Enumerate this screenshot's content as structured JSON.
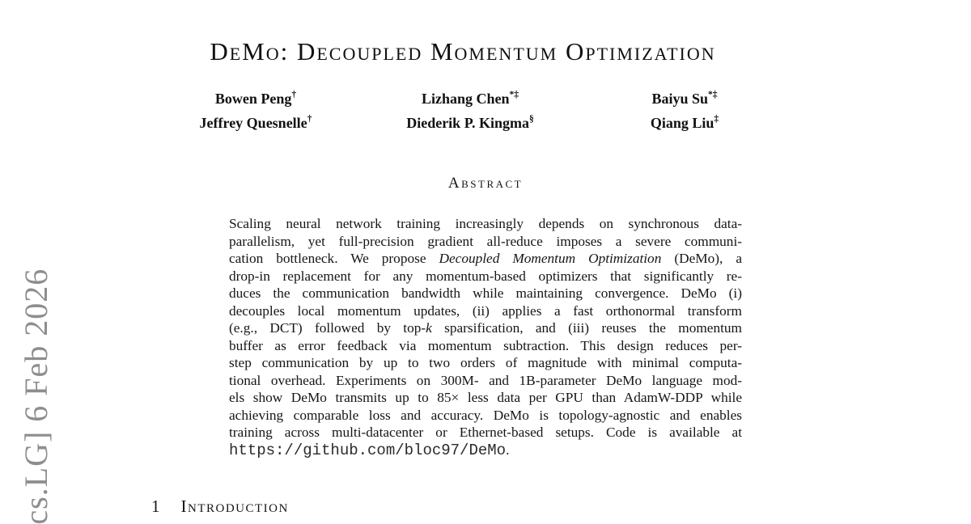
{
  "arxiv_stamp": {
    "text": "[cs.LG] 6 Feb 2026",
    "color": "#8e8e8e"
  },
  "title": "DeMo: Decoupled Momentum Optimization",
  "authors": [
    {
      "name": "Bowen Peng",
      "sup": "†"
    },
    {
      "name": "Lizhang Chen",
      "sup": "*‡"
    },
    {
      "name": "Baiyu Su",
      "sup": "*‡"
    },
    {
      "name": "Jeffrey Quesnelle",
      "sup": "†"
    },
    {
      "name": "Diederik P. Kingma",
      "sup": "§"
    },
    {
      "name": "Qiang Liu",
      "sup": "‡"
    }
  ],
  "abstract": {
    "heading": "Abstract",
    "lines": [
      [
        {
          "text": "Scaling neural network training increasingly depends on synchronous data-"
        }
      ],
      [
        {
          "text": "parallelism, yet full-precision gradient all-reduce imposes a severe communi-"
        }
      ],
      [
        {
          "text": "cation bottleneck.  We propose "
        },
        {
          "text": "Decoupled Momentum Optimization",
          "style": "italic"
        },
        {
          "text": " (DeMo), a"
        }
      ],
      [
        {
          "text": "drop-in replacement for any momentum-based optimizers that significantly re-"
        }
      ],
      [
        {
          "text": "duces the communication bandwidth while maintaining convergence.  DeMo (i)"
        }
      ],
      [
        {
          "text": "decouples local momentum updates, (ii) applies a fast orthonormal transform"
        }
      ],
      [
        {
          "text": "(e.g., DCT) followed by top-"
        },
        {
          "text": "k",
          "style": "italic"
        },
        {
          "text": " sparsification, and (iii) reuses the momentum"
        }
      ],
      [
        {
          "text": "buffer as error feedback via momentum subtraction.  This design reduces per-"
        }
      ],
      [
        {
          "text": "step communication by up to two orders of magnitude with minimal computa-"
        }
      ],
      [
        {
          "text": "tional overhead. Experiments on 300M- and 1B-parameter DeMo language mod-"
        }
      ],
      [
        {
          "text": "els show DeMo transmits up to 85× less data per GPU than AdamW-DDP while"
        }
      ],
      [
        {
          "text": "achieving comparable loss and accuracy. DeMo is topology-agnostic and enables"
        }
      ],
      [
        {
          "text": "training across multi-datacenter or Ethernet-based setups.  Code is available at"
        }
      ],
      [
        {
          "text": "https://github.com/bloc97/DeMo",
          "style": "mono"
        },
        {
          "text": "."
        }
      ]
    ]
  },
  "introduction": {
    "number": "1",
    "heading": "Introduction"
  }
}
